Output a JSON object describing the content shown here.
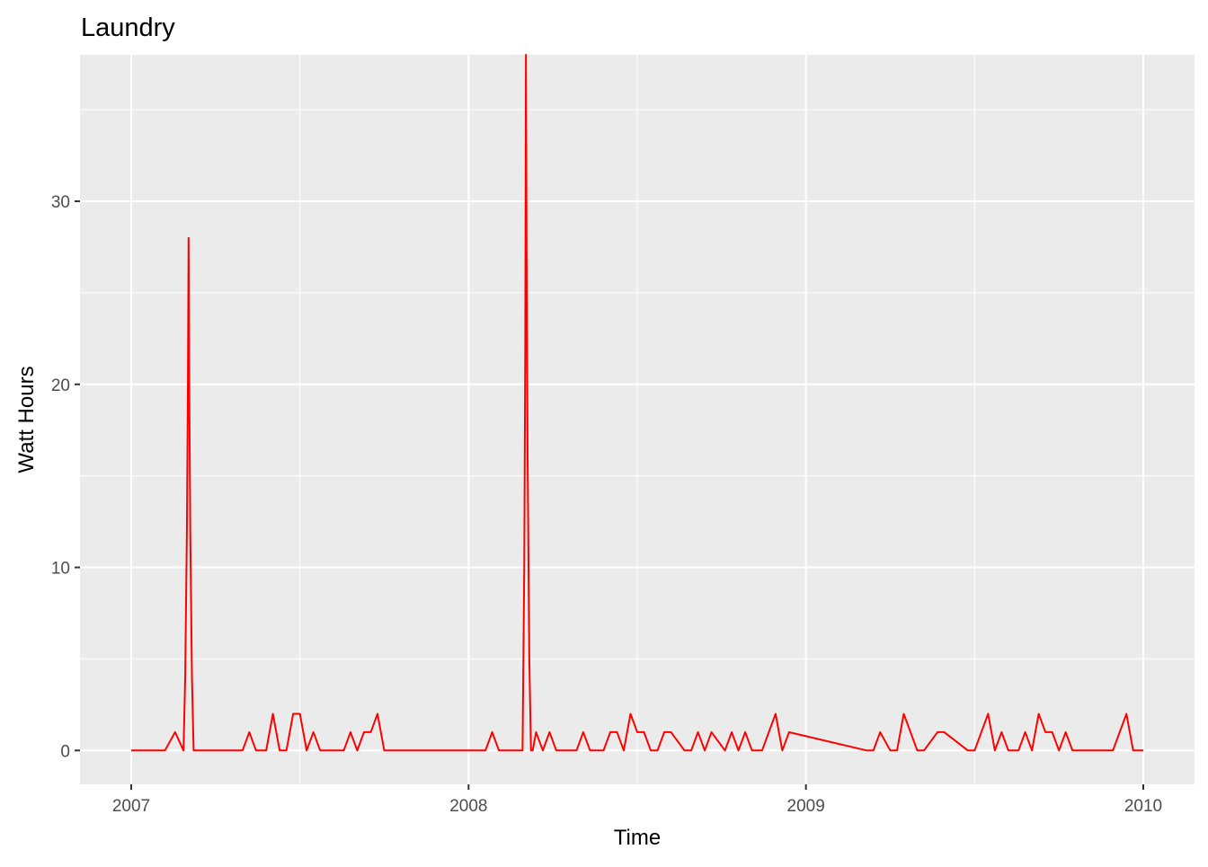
{
  "chart_data": {
    "type": "line",
    "title": "Laundry",
    "xlabel": "Time",
    "ylabel": "Watt Hours",
    "xlim": [
      2007.0,
      2010.0
    ],
    "ylim": [
      -1.85,
      38.0
    ],
    "x_ticks": [
      {
        "value": 2007,
        "label": "2007"
      },
      {
        "value": 2008,
        "label": "2008"
      },
      {
        "value": 2009,
        "label": "2009"
      },
      {
        "value": 2010,
        "label": "2010"
      }
    ],
    "y_ticks": [
      {
        "value": 0,
        "label": "0"
      },
      {
        "value": 10,
        "label": "10"
      },
      {
        "value": 20,
        "label": "20"
      },
      {
        "value": 30,
        "label": "30"
      }
    ],
    "grid": true,
    "background": "#EBEBEB",
    "grid_color": "#FFFFFF",
    "line_color": "#FF0000",
    "series": [
      {
        "x": [
          2007.0,
          2007.1,
          2007.13,
          2007.155,
          2007.16,
          2007.165,
          2007.168,
          2007.17,
          2007.172,
          2007.175,
          2007.18,
          2007.185,
          2007.19,
          2007.195,
          2007.33,
          2007.35,
          2007.37,
          2007.4,
          2007.42,
          2007.44,
          2007.46,
          2007.48,
          2007.5,
          2007.52,
          2007.54,
          2007.56,
          2007.63,
          2007.65,
          2007.67,
          2007.69,
          2007.71,
          2007.73,
          2007.75,
          2008.05,
          2008.07,
          2008.09,
          2008.16,
          2008.165,
          2008.168,
          2008.17,
          2008.172,
          2008.175,
          2008.18,
          2008.185,
          2008.19,
          2008.2,
          2008.22,
          2008.24,
          2008.26,
          2008.28,
          2008.32,
          2008.34,
          2008.36,
          2008.4,
          2008.42,
          2008.44,
          2008.46,
          2008.48,
          2008.5,
          2008.52,
          2008.54,
          2008.56,
          2008.58,
          2008.6,
          2008.64,
          2008.66,
          2008.68,
          2008.7,
          2008.72,
          2008.76,
          2008.78,
          2008.8,
          2008.82,
          2008.84,
          2008.87,
          2008.91,
          2008.93,
          2008.95,
          2009.18,
          2009.2,
          2009.22,
          2009.25,
          2009.27,
          2009.29,
          2009.33,
          2009.35,
          2009.39,
          2009.41,
          2009.48,
          2009.5,
          2009.54,
          2009.56,
          2009.58,
          2009.6,
          2009.63,
          2009.65,
          2009.67,
          2009.69,
          2009.71,
          2009.73,
          2009.75,
          2009.77,
          2009.79,
          2009.91,
          2009.95,
          2009.97,
          2010.0
        ],
        "y": [
          0,
          0,
          1,
          0,
          4,
          12,
          20,
          28,
          20,
          12,
          4,
          0,
          0,
          0,
          0,
          1,
          0,
          0,
          2,
          0,
          0,
          2,
          2,
          0,
          1,
          0,
          0,
          1,
          0,
          1,
          1,
          2,
          0,
          0,
          1,
          0,
          0,
          10,
          22,
          38,
          27,
          16,
          5,
          0,
          0,
          1,
          0,
          1,
          0,
          0,
          0,
          1,
          0,
          0,
          1,
          1,
          0,
          2,
          1,
          1,
          0,
          0,
          1,
          1,
          0,
          0,
          1,
          0,
          1,
          0,
          1,
          0,
          1,
          0,
          0,
          2,
          0,
          1,
          0,
          0,
          1,
          0,
          0,
          2,
          0,
          0,
          1,
          1,
          0,
          0,
          2,
          0,
          1,
          0,
          0,
          1,
          0,
          2,
          1,
          1,
          0,
          1,
          0,
          0,
          2,
          0,
          0
        ]
      }
    ]
  }
}
